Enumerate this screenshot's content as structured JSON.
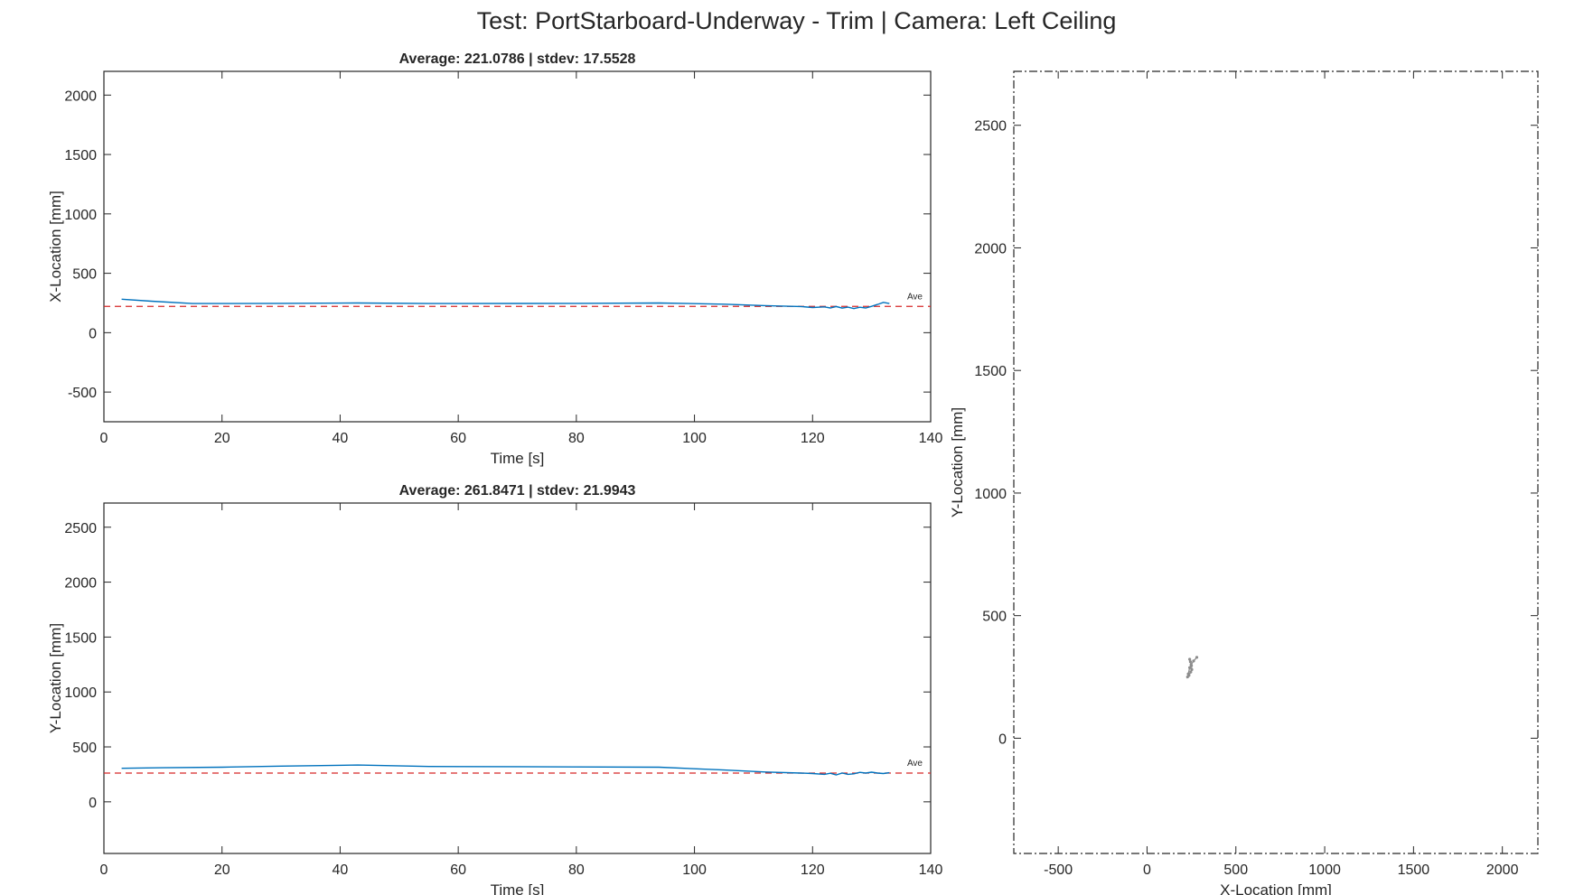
{
  "figure": {
    "suptitle": "Test: PortStarboard-Underway - Trim  |  Camera: Left Ceiling"
  },
  "colors": {
    "trace": "#0072BD",
    "average": "#D62728",
    "axes": "#262626",
    "track": "#8c8c8c"
  },
  "chart_data": [
    {
      "type": "line",
      "id": "x_vs_time",
      "title": "Average: 221.0786  |  stdev: 17.5528",
      "xlabel": "Time [s]",
      "ylabel": "X-Location [mm]",
      "xlim": [
        0,
        140
      ],
      "ylim": [
        -750,
        2200
      ],
      "xticks": [
        0,
        20,
        40,
        60,
        80,
        100,
        120,
        140
      ],
      "yticks": [
        -500,
        0,
        500,
        1000,
        1500,
        2000
      ],
      "average": 221.0786,
      "average_label": "Ave",
      "series": [
        {
          "x": [
            3,
            8,
            15,
            20,
            30,
            43,
            55,
            70,
            80,
            94,
            105,
            112,
            118,
            120,
            122,
            123,
            124,
            125,
            126,
            127,
            128,
            129,
            130,
            131,
            132,
            133
          ],
          "y": [
            282,
            265,
            245,
            245,
            247,
            250,
            245,
            246,
            247,
            250,
            240,
            228,
            220,
            212,
            217,
            208,
            220,
            207,
            215,
            203,
            214,
            208,
            222,
            238,
            255,
            245
          ]
        }
      ]
    },
    {
      "type": "line",
      "id": "y_vs_time",
      "title": "Average: 261.8471  |  stdev: 21.9943",
      "xlabel": "Time [s]",
      "ylabel": "Y-Location [mm]",
      "xlim": [
        0,
        140
      ],
      "ylim": [
        -470,
        2720
      ],
      "xticks": [
        0,
        20,
        40,
        60,
        80,
        100,
        120,
        140
      ],
      "yticks": [
        0,
        500,
        1000,
        1500,
        2000,
        2500
      ],
      "average": 261.8471,
      "average_label": "Ave",
      "series": [
        {
          "x": [
            3,
            10,
            20,
            30,
            43,
            55,
            70,
            80,
            94,
            105,
            112,
            118,
            120,
            122,
            123,
            124,
            125,
            126,
            127,
            128,
            129,
            130,
            131,
            132,
            133
          ],
          "y": [
            305,
            310,
            315,
            325,
            335,
            322,
            320,
            318,
            315,
            290,
            272,
            262,
            258,
            250,
            260,
            245,
            262,
            250,
            255,
            268,
            262,
            270,
            262,
            258,
            265
          ]
        }
      ]
    },
    {
      "type": "scatter",
      "id": "xy_track",
      "title": "",
      "xlabel": "X-Location [mm]",
      "ylabel": "Y-Location [mm]",
      "xlim": [
        -750,
        2200
      ],
      "ylim": [
        -470,
        2720
      ],
      "xticks": [
        -500,
        0,
        500,
        1000,
        1500,
        2000
      ],
      "yticks": [
        0,
        500,
        1000,
        1500,
        2000,
        2500
      ],
      "series": [
        {
          "x": [
            280,
            262,
            248,
            240,
            232,
            228,
            236,
            246,
            252,
            250,
            244,
            240
          ],
          "y": [
            330,
            315,
            300,
            288,
            262,
            250,
            256,
            270,
            280,
            296,
            312,
            322
          ]
        }
      ]
    }
  ]
}
